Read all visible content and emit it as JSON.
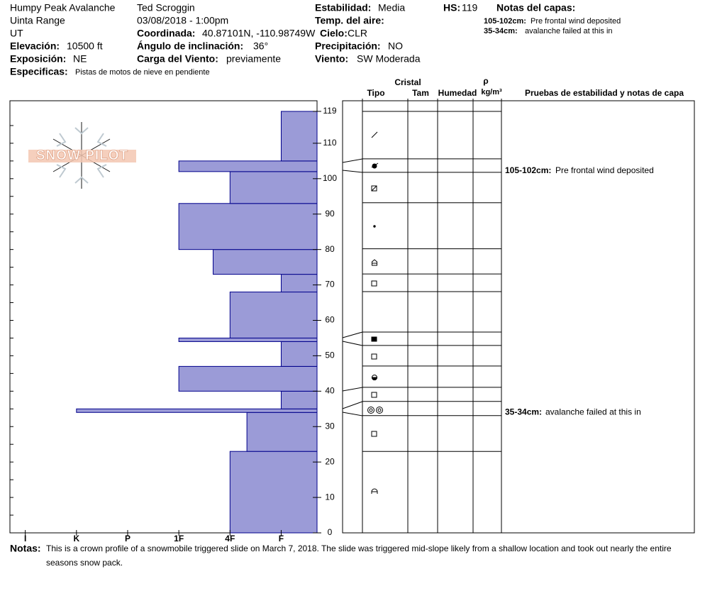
{
  "header": {
    "site": "Humpy Peak Avalanche",
    "range": "Uinta Range",
    "state": "UT",
    "elevation_label": "Elevación:",
    "elevation": "10500 ft",
    "aspect_label": "Exposición:",
    "aspect": "NE",
    "specifics_label": "Especificas:",
    "specifics": "Pistas de motos de nieve en pendiente",
    "observer": "Ted Scroggin",
    "datetime": "03/08/2018 - 1:00pm",
    "coord_label": "Coordinada:",
    "coord": "40.87101N, -110.98749W",
    "slope_label": "Ángulo de inclinación:",
    "slope": "36°",
    "wind_load_label": "Carga del Viento:",
    "wind_load": "previamente",
    "stability_label": "Estabilidad:",
    "stability": "Media",
    "air_temp_label": "Temp. del aire:",
    "sky_label": "Cielo:",
    "sky": "CLR",
    "precip_label": "Precipitación:",
    "precip": "NO",
    "wind_label": "Viento:",
    "wind": "SW Moderada",
    "hs_label": "HS:",
    "hs": "119"
  },
  "layer_notes": {
    "title": "Notas del capas:",
    "items": [
      {
        "range": "105-102cm:",
        "text": "Pre frontal wind deposited"
      },
      {
        "range": "35-34cm:",
        "text": "avalanche failed at this in"
      }
    ]
  },
  "logo": "SNOW PILOT",
  "chart_data": {
    "type": "hardness",
    "color": "#9b9bd7",
    "edge_color": "#00008b",
    "xlim": [
      6.3,
      0.3
    ],
    "xticks": [
      {
        "value": 6,
        "label": "I"
      },
      {
        "value": 5,
        "label": "K"
      },
      {
        "value": 4,
        "label": "P"
      },
      {
        "value": 3,
        "label": "1F"
      },
      {
        "value": 2,
        "label": "4F"
      },
      {
        "value": 1,
        "label": "F"
      }
    ],
    "ylim": [
      0,
      122
    ],
    "yticks": [
      0,
      10,
      20,
      30,
      40,
      50,
      60,
      70,
      80,
      90,
      100,
      110,
      119
    ],
    "layers": [
      {
        "bottom": 0,
        "top": 23,
        "hardness": 2
      },
      {
        "bottom": 23,
        "top": 34,
        "hardness": 1.67
      },
      {
        "bottom": 34,
        "top": 35,
        "hardness": 5
      },
      {
        "bottom": 35,
        "top": 40,
        "hardness": 1
      },
      {
        "bottom": 40,
        "top": 47,
        "hardness": 3
      },
      {
        "bottom": 47,
        "top": 54,
        "hardness": 1
      },
      {
        "bottom": 54,
        "top": 55,
        "hardness": 3
      },
      {
        "bottom": 55,
        "top": 68,
        "hardness": 2
      },
      {
        "bottom": 68,
        "top": 73,
        "hardness": 1
      },
      {
        "bottom": 73,
        "top": 80,
        "hardness": 2.33
      },
      {
        "bottom": 80,
        "top": 93,
        "hardness": 3
      },
      {
        "bottom": 93,
        "top": 102,
        "hardness": 2
      },
      {
        "bottom": 102,
        "top": 105,
        "hardness": 3
      },
      {
        "bottom": 105,
        "top": 119,
        "hardness": 1
      }
    ]
  },
  "grain_table": {
    "header_group": "Cristal",
    "col_type": "Tipo",
    "col_size": "Tam",
    "col_moisture": "Humedad",
    "col_density_symbol": "ρ",
    "col_density_unit": "kg/m³",
    "col_tests": "Pruebas de estabilidad y notas de capa",
    "boundaries": [
      119,
      105.6,
      101.8,
      93.2,
      80.2,
      73.1,
      68.1,
      56.7,
      52.9,
      47.1,
      41.1,
      37.1,
      33.1,
      23
    ],
    "notes": [
      {
        "range": "105-102cm:",
        "text": "Pre frontal wind deposited",
        "height": 102.2
      },
      {
        "range": "35-34cm:",
        "text": "avalanche failed at this in",
        "height": 34
      }
    ]
  },
  "footer": {
    "label": "Notas:",
    "lines": [
      "This is a crown profile of a snowmobile triggered slide on March 7, 2018.  The slide was triggered mid-slope likely from a shallow location and took out nearly the entire",
      "seasons snow pack."
    ]
  }
}
